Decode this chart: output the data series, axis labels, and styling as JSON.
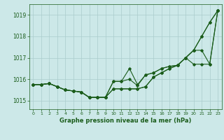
{
  "xlabel": "Graphe pression niveau de la mer (hPa)",
  "xlim": [
    -0.5,
    23.5
  ],
  "ylim": [
    1014.6,
    1019.5
  ],
  "yticks": [
    1015,
    1016,
    1017,
    1018,
    1019
  ],
  "xticks": [
    0,
    1,
    2,
    3,
    4,
    5,
    6,
    7,
    8,
    9,
    10,
    11,
    12,
    13,
    14,
    15,
    16,
    17,
    18,
    19,
    20,
    21,
    22,
    23
  ],
  "background_color": "#cce8e8",
  "grid_color": "#aacccc",
  "line_color": "#1a5c1a",
  "series": [
    [
      1015.75,
      1015.75,
      1015.8,
      1015.65,
      1015.5,
      1015.45,
      1015.4,
      1015.15,
      1015.15,
      1015.15,
      1015.55,
      1015.55,
      1015.55,
      1015.55,
      1015.65,
      1016.1,
      1016.3,
      1016.5,
      1016.65,
      1017.0,
      1017.35,
      1017.35,
      1016.7,
      1019.2
    ],
    [
      1015.75,
      1015.75,
      1015.8,
      1015.65,
      1015.5,
      1015.45,
      1015.4,
      1015.15,
      1015.15,
      1015.15,
      1015.55,
      1015.55,
      1015.55,
      1015.55,
      1015.65,
      1016.1,
      1016.3,
      1016.5,
      1016.65,
      1017.0,
      1016.7,
      1016.7,
      1016.7,
      1019.2
    ],
    [
      1015.75,
      1015.75,
      1015.8,
      1015.65,
      1015.5,
      1015.45,
      1015.4,
      1015.15,
      1015.15,
      1015.15,
      1015.9,
      1015.9,
      1016.0,
      1015.7,
      1016.2,
      1016.3,
      1016.5,
      1016.6,
      1016.65,
      1017.0,
      1017.35,
      1018.0,
      1018.65,
      1019.2
    ],
    [
      1015.75,
      1015.75,
      1015.8,
      1015.65,
      1015.5,
      1015.45,
      1015.4,
      1015.15,
      1015.15,
      1015.15,
      1015.9,
      1015.9,
      1016.5,
      1015.75,
      1016.2,
      1016.3,
      1016.5,
      1016.6,
      1016.65,
      1017.0,
      1017.35,
      1018.0,
      1018.65,
      1019.2
    ]
  ]
}
